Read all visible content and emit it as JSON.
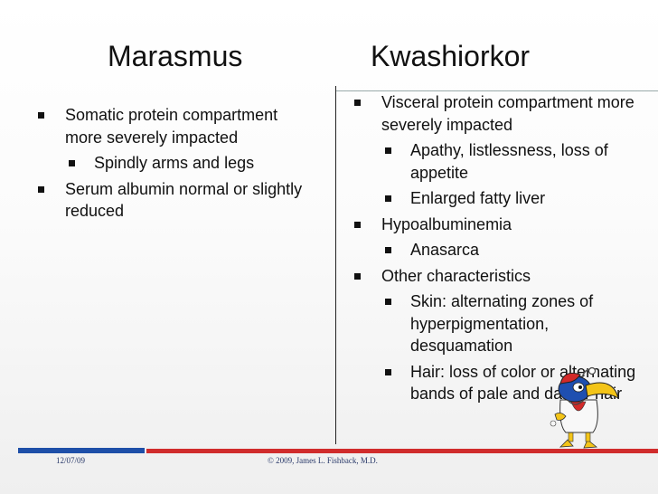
{
  "titles": {
    "left": "Marasmus",
    "right": "Kwashiorkor"
  },
  "left_column": {
    "items": [
      {
        "text": "Somatic protein compartment more severely impacted",
        "level": 1
      },
      {
        "text": "Spindly arms and legs",
        "level": 2
      },
      {
        "text": "Serum albumin normal or slightly reduced",
        "level": 1
      }
    ]
  },
  "right_column": {
    "items": [
      {
        "text": "Visceral protein compartment more severely impacted",
        "level": 1
      },
      {
        "text": "Apathy, listlessness, loss of appetite",
        "level": 2
      },
      {
        "text": "Enlarged fatty liver",
        "level": 2
      },
      {
        "text": "Hypoalbuminemia",
        "level": 1
      },
      {
        "text": "Anasarca",
        "level": 2
      },
      {
        "text": "Other characteristics",
        "level": 1
      },
      {
        "text": "Skin: alternating zones of hyperpigmentation, desquamation",
        "level": 2
      },
      {
        "text": "Hair:  loss of color or alternating bands of pale and darker hair",
        "level": 2
      }
    ]
  },
  "footer": {
    "date": "12/07/09",
    "copyright": "© 2009, James L. Fishback, M.D."
  },
  "colors": {
    "footer_blue": "#1e4fa8",
    "footer_red": "#d02c2c",
    "mascot_yellow": "#f3c418",
    "mascot_red": "#d22a2a",
    "mascot_blue": "#1f4fb0"
  },
  "icons": {
    "mascot": "jayhawk-mascot-icon",
    "bullet": "square-bullet-icon"
  }
}
